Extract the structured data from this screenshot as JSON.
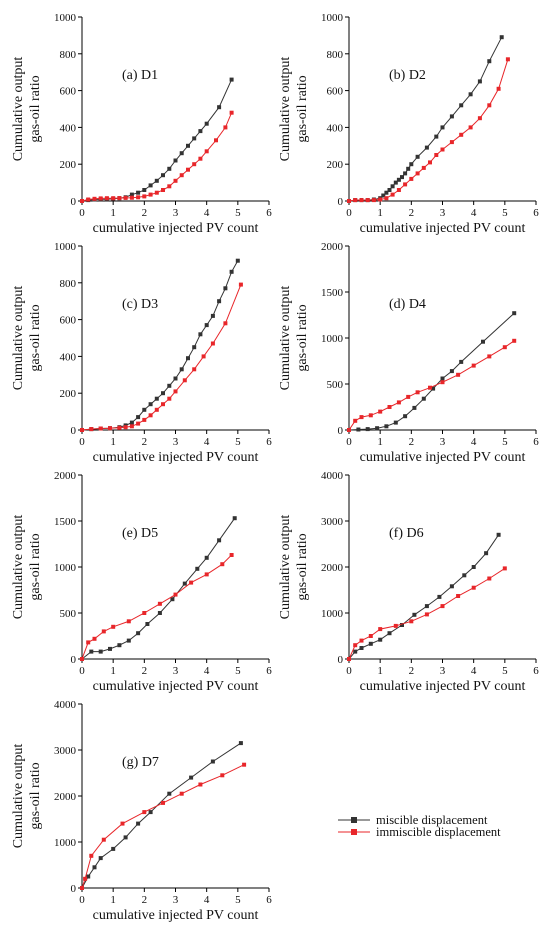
{
  "figure": {
    "legend": {
      "entries": [
        {
          "label": "miscible displacement",
          "color": "#333333",
          "marker": "square"
        },
        {
          "label": "immiscible displacement",
          "color": "#e8262a",
          "marker": "square"
        }
      ]
    }
  },
  "chart_data": [
    {
      "type": "line",
      "panel_label": "(a) D1",
      "xlabel": "cumulative injected PV count",
      "ylabel": [
        "Cumulative output",
        "gas-oil ratio"
      ],
      "xlim": [
        0,
        6
      ],
      "ylim": [
        0,
        1000
      ],
      "xticks": [
        0,
        1,
        2,
        3,
        4,
        5,
        6
      ],
      "yticks": [
        0,
        200,
        400,
        600,
        800,
        1000
      ],
      "series": [
        {
          "name": "miscible displacement",
          "color": "#333333",
          "x": [
            0,
            0.2,
            0.4,
            0.6,
            0.8,
            1.0,
            1.2,
            1.4,
            1.6,
            1.8,
            2.0,
            2.2,
            2.4,
            2.6,
            2.8,
            3.0,
            3.2,
            3.4,
            3.6,
            3.8,
            4.0,
            4.4,
            4.8
          ],
          "y": [
            0,
            5,
            8,
            10,
            10,
            12,
            15,
            20,
            35,
            45,
            60,
            85,
            110,
            140,
            175,
            220,
            260,
            300,
            340,
            380,
            420,
            510,
            660
          ]
        },
        {
          "name": "immiscible displacement",
          "color": "#e8262a",
          "x": [
            0,
            0.2,
            0.4,
            0.6,
            0.8,
            1.0,
            1.2,
            1.4,
            1.6,
            1.8,
            2.0,
            2.2,
            2.4,
            2.6,
            2.8,
            3.0,
            3.2,
            3.4,
            3.6,
            3.8,
            4.0,
            4.3,
            4.6,
            4.8
          ],
          "y": [
            0,
            8,
            12,
            14,
            15,
            15,
            16,
            17,
            18,
            20,
            25,
            35,
            45,
            60,
            80,
            110,
            140,
            170,
            200,
            230,
            270,
            330,
            400,
            480
          ]
        }
      ]
    },
    {
      "type": "line",
      "panel_label": "(b) D2",
      "xlabel": "cumulative injected PV count",
      "ylabel": [
        "Cumulative output",
        "gas-oil ratio"
      ],
      "xlim": [
        0,
        6
      ],
      "ylim": [
        0,
        1000
      ],
      "xticks": [
        0,
        1,
        2,
        3,
        4,
        5,
        6
      ],
      "yticks": [
        0,
        200,
        400,
        600,
        800,
        1000
      ],
      "series": [
        {
          "name": "miscible displacement",
          "color": "#333333",
          "x": [
            0,
            0.2,
            0.4,
            0.6,
            0.8,
            1.0,
            1.1,
            1.2,
            1.3,
            1.4,
            1.5,
            1.6,
            1.7,
            1.8,
            1.9,
            2.0,
            2.2,
            2.5,
            2.8,
            3.0,
            3.3,
            3.6,
            3.9,
            4.2,
            4.5,
            4.9
          ],
          "y": [
            0,
            5,
            5,
            5,
            8,
            15,
            30,
            45,
            60,
            80,
            100,
            115,
            130,
            150,
            175,
            200,
            240,
            290,
            350,
            400,
            460,
            520,
            580,
            650,
            760,
            890
          ]
        },
        {
          "name": "immiscible displacement",
          "color": "#e8262a",
          "x": [
            0,
            0.2,
            0.4,
            0.6,
            0.8,
            1.0,
            1.2,
            1.4,
            1.6,
            1.8,
            2.0,
            2.2,
            2.4,
            2.6,
            2.8,
            3.0,
            3.3,
            3.6,
            3.9,
            4.2,
            4.5,
            4.8,
            5.1
          ],
          "y": [
            0,
            5,
            5,
            5,
            5,
            8,
            15,
            35,
            60,
            90,
            120,
            150,
            180,
            210,
            250,
            280,
            320,
            360,
            400,
            450,
            520,
            610,
            770
          ]
        }
      ]
    },
    {
      "type": "line",
      "panel_label": "(c) D3",
      "xlabel": "cumulative injected PV count",
      "ylabel": [
        "Cumulative output",
        "gas-oil ratio"
      ],
      "xlim": [
        0,
        6
      ],
      "ylim": [
        0,
        1000
      ],
      "xticks": [
        0,
        1,
        2,
        3,
        4,
        5,
        6
      ],
      "yticks": [
        0,
        200,
        400,
        600,
        800,
        1000
      ],
      "series": [
        {
          "name": "miscible displacement",
          "color": "#333333",
          "x": [
            0,
            0.3,
            0.6,
            0.9,
            1.2,
            1.4,
            1.6,
            1.8,
            2.0,
            2.2,
            2.4,
            2.6,
            2.8,
            3.0,
            3.2,
            3.4,
            3.6,
            3.8,
            4.0,
            4.2,
            4.4,
            4.6,
            4.8,
            5.0
          ],
          "y": [
            0,
            5,
            8,
            10,
            15,
            25,
            40,
            70,
            110,
            140,
            170,
            200,
            240,
            280,
            330,
            390,
            450,
            520,
            570,
            620,
            700,
            770,
            860,
            920
          ]
        },
        {
          "name": "immiscible displacement",
          "color": "#e8262a",
          "x": [
            0,
            0.3,
            0.6,
            0.9,
            1.2,
            1.4,
            1.6,
            1.8,
            2.0,
            2.2,
            2.4,
            2.6,
            2.8,
            3.0,
            3.3,
            3.6,
            3.9,
            4.2,
            4.6,
            5.1
          ],
          "y": [
            0,
            5,
            8,
            10,
            12,
            15,
            20,
            35,
            55,
            80,
            110,
            140,
            170,
            210,
            270,
            330,
            400,
            470,
            580,
            790
          ]
        }
      ]
    },
    {
      "type": "line",
      "panel_label": "(d) D4",
      "xlabel": "cumulative injected PV count",
      "ylabel": [
        "Cumulative output",
        "gas-oil ratio"
      ],
      "xlim": [
        0,
        6
      ],
      "ylim": [
        0,
        2000
      ],
      "xticks": [
        0,
        1,
        2,
        3,
        4,
        5,
        6
      ],
      "yticks": [
        0,
        500,
        1000,
        1500,
        2000
      ],
      "series": [
        {
          "name": "miscible displacement",
          "color": "#333333",
          "x": [
            0,
            0.3,
            0.6,
            0.9,
            1.2,
            1.5,
            1.8,
            2.1,
            2.4,
            2.7,
            3.0,
            3.3,
            3.6,
            4.3,
            5.3
          ],
          "y": [
            0,
            5,
            10,
            20,
            40,
            80,
            150,
            240,
            340,
            450,
            560,
            640,
            740,
            960,
            1270
          ]
        },
        {
          "name": "immiscible displacement",
          "color": "#e8262a",
          "x": [
            0,
            0.2,
            0.4,
            0.7,
            1.0,
            1.3,
            1.6,
            1.9,
            2.2,
            2.6,
            3.0,
            3.5,
            4.0,
            4.5,
            5.0,
            5.3
          ],
          "y": [
            0,
            100,
            140,
            160,
            200,
            250,
            300,
            360,
            410,
            460,
            520,
            600,
            700,
            800,
            900,
            970
          ]
        }
      ]
    },
    {
      "type": "line",
      "panel_label": "(e) D5",
      "xlabel": "cumulative injected PV count",
      "ylabel": [
        "Cumulative output",
        "gas-oil ratio"
      ],
      "xlim": [
        0,
        6
      ],
      "ylim": [
        0,
        2000
      ],
      "xticks": [
        0,
        1,
        2,
        3,
        4,
        5,
        6
      ],
      "yticks": [
        0,
        500,
        1000,
        1500,
        2000
      ],
      "series": [
        {
          "name": "miscible displacement",
          "color": "#333333",
          "x": [
            0,
            0.3,
            0.6,
            0.9,
            1.2,
            1.5,
            1.8,
            2.1,
            2.5,
            2.9,
            3.3,
            3.7,
            4.0,
            4.4,
            4.9
          ],
          "y": [
            0,
            80,
            80,
            110,
            150,
            200,
            280,
            380,
            500,
            650,
            820,
            980,
            1100,
            1290,
            1530
          ]
        },
        {
          "name": "immiscible displacement",
          "color": "#e8262a",
          "x": [
            0,
            0.2,
            0.4,
            0.7,
            1.0,
            1.5,
            2.0,
            2.5,
            3.0,
            3.5,
            4.0,
            4.5,
            4.8
          ],
          "y": [
            0,
            180,
            220,
            300,
            350,
            410,
            500,
            600,
            700,
            830,
            920,
            1030,
            1130
          ]
        }
      ]
    },
    {
      "type": "line",
      "panel_label": "(f) D6",
      "xlabel": "cumulative injected PV count",
      "ylabel": [
        "Cumulative output",
        "gas-oil ratio"
      ],
      "xlim": [
        0,
        6
      ],
      "ylim": [
        0,
        4000
      ],
      "xticks": [
        0,
        1,
        2,
        3,
        4,
        5,
        6
      ],
      "yticks": [
        0,
        1000,
        2000,
        3000,
        4000
      ],
      "series": [
        {
          "name": "miscible displacement",
          "color": "#333333",
          "x": [
            0,
            0.2,
            0.4,
            0.7,
            1.0,
            1.3,
            1.7,
            2.1,
            2.5,
            2.9,
            3.3,
            3.7,
            4.0,
            4.4,
            4.8
          ],
          "y": [
            0,
            160,
            240,
            330,
            420,
            560,
            740,
            960,
            1150,
            1350,
            1580,
            1820,
            2000,
            2300,
            2700
          ]
        },
        {
          "name": "immiscible displacement",
          "color": "#e8262a",
          "x": [
            0,
            0.2,
            0.4,
            0.7,
            1.0,
            1.5,
            2.0,
            2.5,
            3.0,
            3.5,
            4.0,
            4.5,
            5.0
          ],
          "y": [
            0,
            300,
            400,
            500,
            650,
            720,
            820,
            970,
            1150,
            1370,
            1550,
            1750,
            1970
          ]
        }
      ]
    },
    {
      "type": "line",
      "panel_label": "(g) D7",
      "xlabel": "cumulative injected PV count",
      "ylabel": [
        "Cumulative output",
        "gas-oil ratio"
      ],
      "xlim": [
        0,
        6
      ],
      "ylim": [
        0,
        4000
      ],
      "xticks": [
        0,
        1,
        2,
        3,
        4,
        5,
        6
      ],
      "yticks": [
        0,
        1000,
        2000,
        3000,
        4000
      ],
      "series": [
        {
          "name": "miscible displacement",
          "color": "#333333",
          "x": [
            0,
            0.2,
            0.4,
            0.6,
            1.0,
            1.4,
            1.8,
            2.2,
            2.8,
            3.5,
            4.2,
            5.1
          ],
          "y": [
            0,
            250,
            450,
            650,
            850,
            1100,
            1400,
            1650,
            2050,
            2400,
            2750,
            3150
          ]
        },
        {
          "name": "immiscible displacement",
          "color": "#e8262a",
          "x": [
            0,
            0.1,
            0.3,
            0.7,
            1.3,
            2.0,
            2.6,
            3.2,
            3.8,
            4.5,
            5.2
          ],
          "y": [
            0,
            200,
            700,
            1050,
            1400,
            1650,
            1850,
            2050,
            2250,
            2450,
            2680
          ]
        }
      ]
    }
  ]
}
